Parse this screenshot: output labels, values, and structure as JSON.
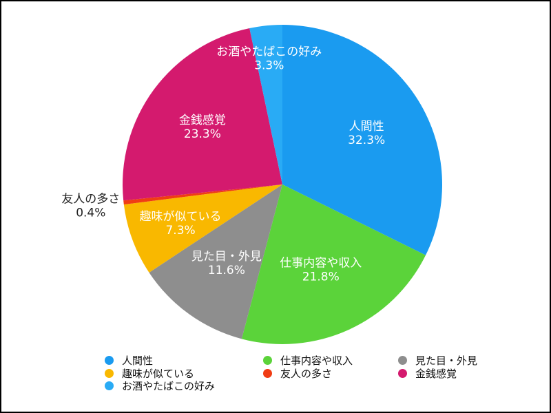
{
  "chart_data": {
    "type": "pie",
    "title": "",
    "categories": [
      "人間性",
      "仕事内容や収入",
      "見た目・外見",
      "趣味が似ている",
      "友人の多さ",
      "金銭感覚",
      "お酒やたばこの好み"
    ],
    "values": [
      32.3,
      21.8,
      11.6,
      7.3,
      0.4,
      23.3,
      3.3
    ],
    "value_labels": [
      "32.3%",
      "21.8%",
      "11.6%",
      "7.3%",
      "0.4%",
      "23.3%",
      "3.3%"
    ],
    "colors": [
      "#1A9BF0",
      "#5BD33A",
      "#8E8E8E",
      "#F9B800",
      "#F03C14",
      "#D41A6E",
      "#29ABF5"
    ],
    "start": "12 o'clock",
    "direction": "clockwise",
    "legend_position": "bottom",
    "legend_order": [
      "人間性",
      "仕事内容や収入",
      "見た目・外見",
      "趣味が似ている",
      "友人の多さ",
      "金銭感覚",
      "お酒やたばこの好み"
    ]
  }
}
